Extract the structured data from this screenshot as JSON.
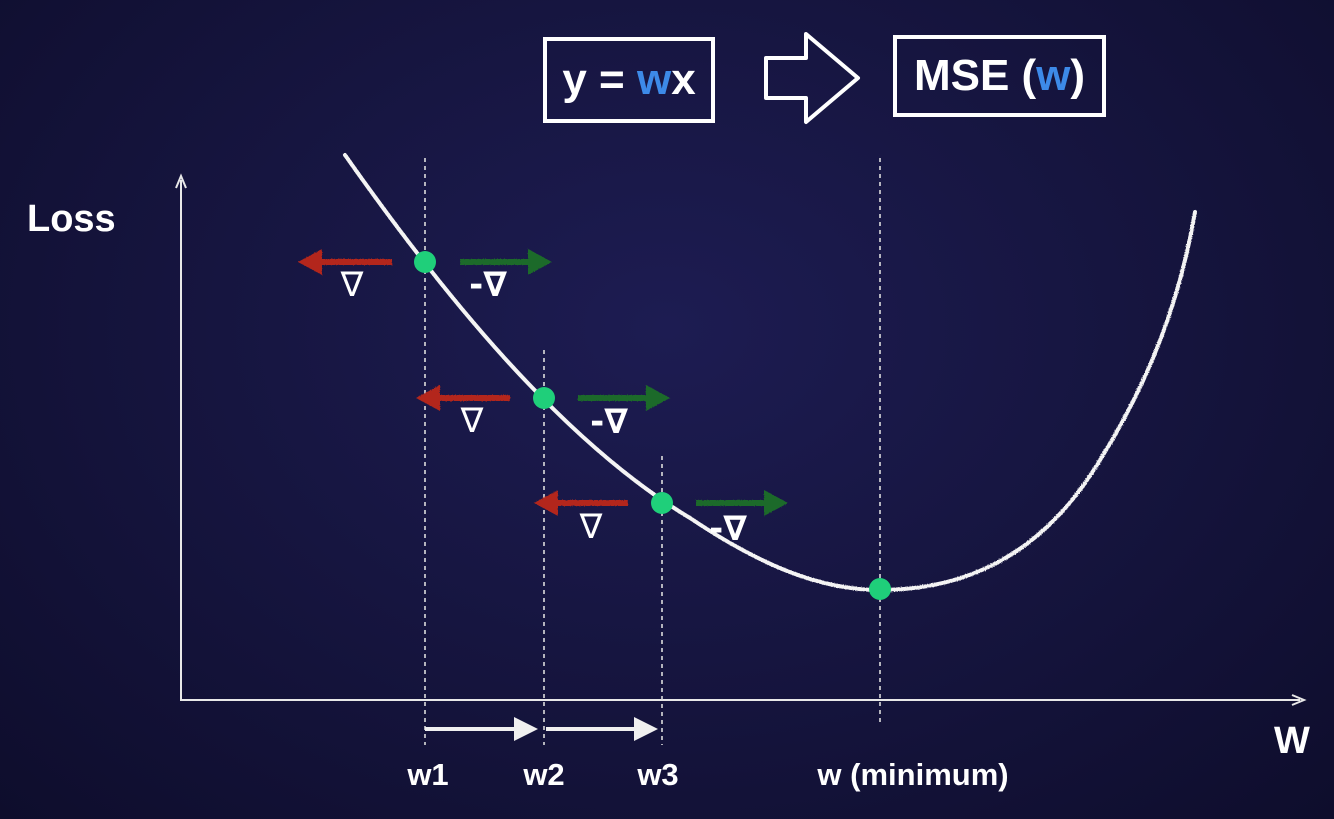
{
  "formula": {
    "model_prefix": "y = ",
    "model_var": "w",
    "model_suffix": "x",
    "loss_prefix": "MSE (",
    "loss_var": "w",
    "loss_suffix": ")"
  },
  "axes": {
    "y_label": "Loss",
    "x_label": "W"
  },
  "symbols": {
    "gradient": "∇",
    "neg_gradient": "-∇"
  },
  "colors": {
    "background": "#16153f",
    "accent": "#3d8ae8",
    "point": "#1fcf7a",
    "gradient_arrow": "#b3281c",
    "neg_gradient_arrow": "#1f6b2a",
    "curve": "#f4f4f4"
  },
  "chart_data": {
    "type": "line",
    "title": "",
    "xlabel": "W",
    "ylabel": "Loss",
    "points": [
      {
        "label": "w1",
        "x": 1,
        "loss": 0.78
      },
      {
        "label": "w2",
        "x": 2,
        "loss": 0.55
      },
      {
        "label": "w3",
        "x": 3,
        "loss": 0.35
      },
      {
        "label": "w (minimum)",
        "x": 5,
        "loss": 0.21
      }
    ]
  }
}
